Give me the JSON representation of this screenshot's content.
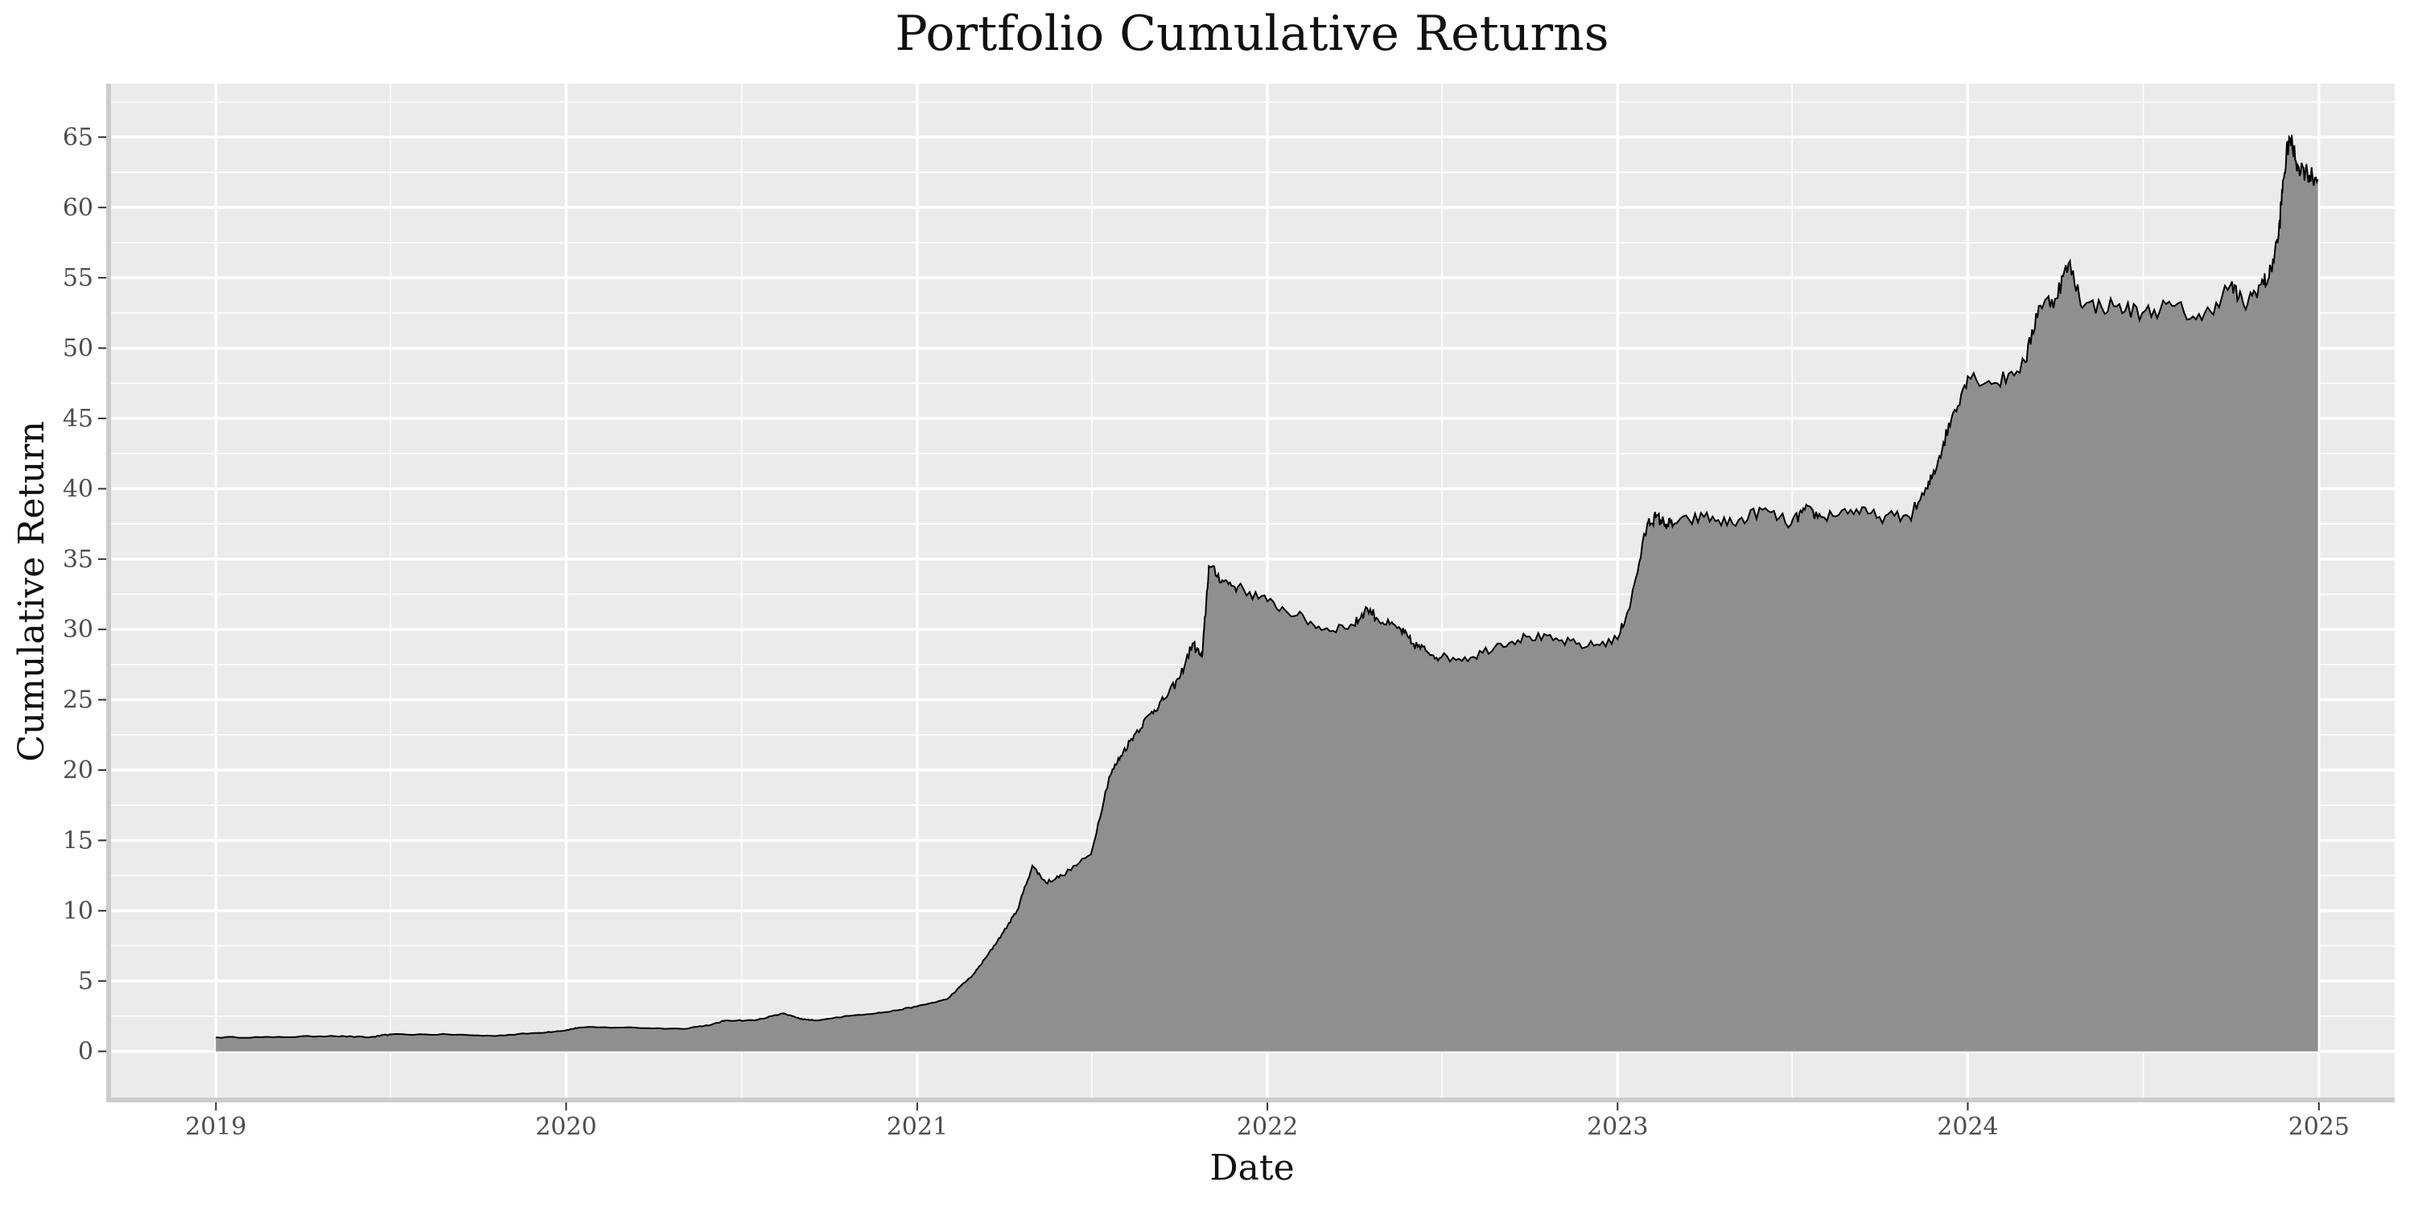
{
  "chart_data": {
    "type": "area",
    "title": "Portfolio Cumulative Returns",
    "xlabel": "Date",
    "ylabel": "Cumulative Return",
    "x_ticks": [
      "2019",
      "2020",
      "2021",
      "2022",
      "2023",
      "2024",
      "2025"
    ],
    "y_ticks": [
      "0",
      "5",
      "10",
      "15",
      "20",
      "25",
      "30",
      "35",
      "40",
      "45",
      "50",
      "55",
      "60",
      "65"
    ],
    "xlim": [
      "2018-09-12",
      "2025-03-21"
    ],
    "ylim": [
      -3.4,
      68.8
    ],
    "grid": true,
    "legend": "none",
    "colors": {
      "panel_background": "#ebebeb",
      "grid_line": "#ffffff",
      "area_fill": "#8f8f8f",
      "line": "#000000"
    },
    "series": [
      {
        "x": [
          "2019-01-01",
          "2019-03-01",
          "2019-05-01",
          "2019-06-10",
          "2019-07-01",
          "2019-09-01",
          "2019-10-15",
          "2019-12-01",
          "2020-01-01",
          "2020-01-15",
          "2020-03-01",
          "2020-05-01",
          "2020-06-01",
          "2020-06-15",
          "2020-07-15",
          "2020-08-15",
          "2020-09-01",
          "2020-09-15",
          "2020-11-01",
          "2020-12-01",
          "2021-01-01",
          "2021-02-01",
          "2021-03-01",
          "2021-03-15",
          "2021-04-01",
          "2021-04-15",
          "2021-05-01",
          "2021-05-15",
          "2021-06-01",
          "2021-07-01",
          "2021-07-20",
          "2021-08-01",
          "2021-08-15",
          "2021-09-01",
          "2021-09-15",
          "2021-10-01",
          "2021-10-15",
          "2021-10-25",
          "2021-11-01",
          "2021-11-15",
          "2021-12-01",
          "2022-01-01",
          "2022-02-01",
          "2022-03-01",
          "2022-04-01",
          "2022-04-15",
          "2022-05-01",
          "2022-05-20",
          "2022-06-01",
          "2022-06-15",
          "2022-07-01",
          "2022-08-01",
          "2022-09-01",
          "2022-10-01",
          "2022-11-01",
          "2022-12-01",
          "2023-01-01",
          "2023-01-15",
          "2023-02-01",
          "2023-02-10",
          "2023-02-20",
          "2023-03-01",
          "2023-04-01",
          "2023-05-01",
          "2023-06-01",
          "2023-07-01",
          "2023-07-15",
          "2023-08-01",
          "2023-09-01",
          "2023-10-01",
          "2023-11-01",
          "2023-11-20",
          "2023-12-01",
          "2023-12-15",
          "2024-01-01",
          "2024-02-01",
          "2024-03-01",
          "2024-03-15",
          "2024-04-01",
          "2024-04-15",
          "2024-05-01",
          "2024-06-01",
          "2024-07-01",
          "2024-08-01",
          "2024-09-01",
          "2024-10-01",
          "2024-10-15",
          "2024-11-01",
          "2024-11-10",
          "2024-11-20",
          "2024-11-25",
          "2024-12-01",
          "2024-12-10",
          "2024-12-20",
          "2024-12-31"
        ],
        "y": [
          1.0,
          1.0,
          1.1,
          1.0,
          1.2,
          1.2,
          1.1,
          1.3,
          1.5,
          1.7,
          1.7,
          1.6,
          1.9,
          2.2,
          2.2,
          2.7,
          2.3,
          2.2,
          2.6,
          2.8,
          3.2,
          3.7,
          5.5,
          6.8,
          8.5,
          10.0,
          13.2,
          12.0,
          12.5,
          14.0,
          19.5,
          21.0,
          22.5,
          24.0,
          25.0,
          26.5,
          29.0,
          28.0,
          34.5,
          33.5,
          33.0,
          32.0,
          31.0,
          30.0,
          30.3,
          31.5,
          30.5,
          30.0,
          29.0,
          28.5,
          28.0,
          28.0,
          29.0,
          29.5,
          29.2,
          28.8,
          29.3,
          32.0,
          37.5,
          38.0,
          37.5,
          37.5,
          38.0,
          37.5,
          38.5,
          37.5,
          38.5,
          38.0,
          38.5,
          38.0,
          38.0,
          40.0,
          42.0,
          45.0,
          48.0,
          47.5,
          49.0,
          53.0,
          53.5,
          56.0,
          53.0,
          53.0,
          52.5,
          53.0,
          52.0,
          54.5,
          53.0,
          54.5,
          55.0,
          58.0,
          62.0,
          65.0,
          63.0,
          62.5,
          62.0
        ]
      }
    ]
  }
}
